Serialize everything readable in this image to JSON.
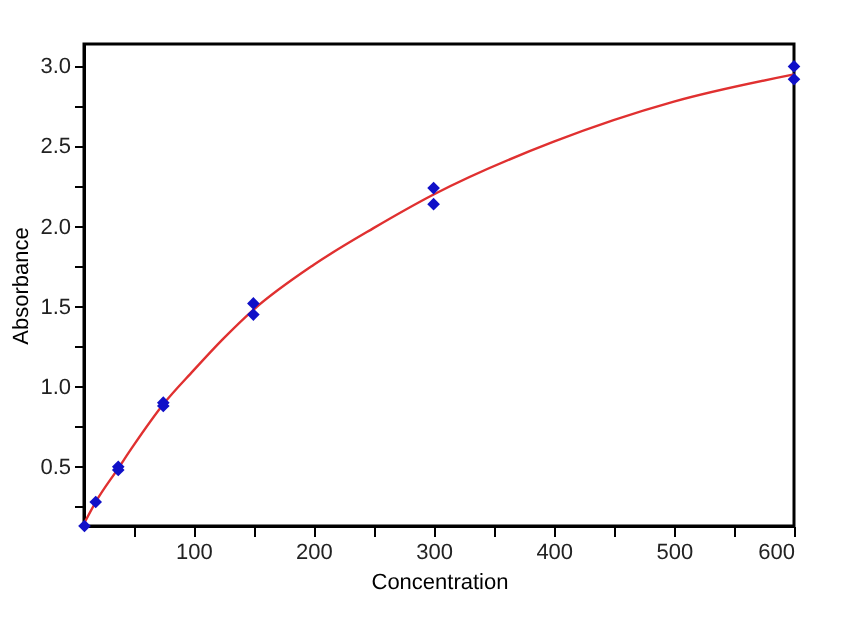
{
  "chart_data": {
    "type": "scatter",
    "xlabel": "Concentration",
    "ylabel": "Absorbance",
    "xlim": [
      9,
      600
    ],
    "ylim": [
      0.13,
      3.14
    ],
    "xticks": [
      {
        "value": 50,
        "label": null
      },
      100,
      {
        "value": 150,
        "label": null
      },
      200,
      {
        "value": 250,
        "label": null
      },
      300,
      {
        "value": 350,
        "label": null
      },
      400,
      {
        "value": 450,
        "label": null
      },
      500,
      {
        "value": 550,
        "label": null
      },
      600
    ],
    "yticks": [
      {
        "value": 0.25,
        "label": null
      },
      0.5,
      {
        "value": 0.75,
        "label": null
      },
      {
        "value": 1,
        "label": "1.0"
      },
      {
        "value": 1.25,
        "label": null
      },
      1.5,
      {
        "value": 1.75,
        "label": null
      },
      {
        "value": 2,
        "label": "2.0"
      },
      {
        "value": 2.25,
        "label": null
      },
      2.5,
      {
        "value": 2.75,
        "label": null
      },
      {
        "value": 3,
        "label": "3.0"
      }
    ],
    "grid": false,
    "series": [
      {
        "type": "line",
        "color": "#e03030",
        "marker": "none",
        "line_style": "solid",
        "x": [
          9.4,
          18.75,
          37.5,
          50,
          75,
          100,
          125,
          150,
          200,
          250,
          300,
          400,
          500,
          600
        ],
        "values": [
          0.15,
          0.28,
          0.49,
          0.63,
          0.89,
          1.1,
          1.3,
          1.48,
          1.76,
          1.99,
          2.2,
          2.53,
          2.78,
          2.95
        ]
      },
      {
        "color": "#1010c8",
        "marker": "diamond",
        "x": [
          9.4,
          18.75,
          37.5,
          37.5,
          75,
          75,
          150,
          150,
          300,
          300,
          600,
          600
        ],
        "values": [
          0.13,
          0.28,
          0.5,
          0.48,
          0.9,
          0.88,
          1.52,
          1.45,
          2.24,
          2.14,
          3.0,
          2.92
        ]
      }
    ]
  }
}
